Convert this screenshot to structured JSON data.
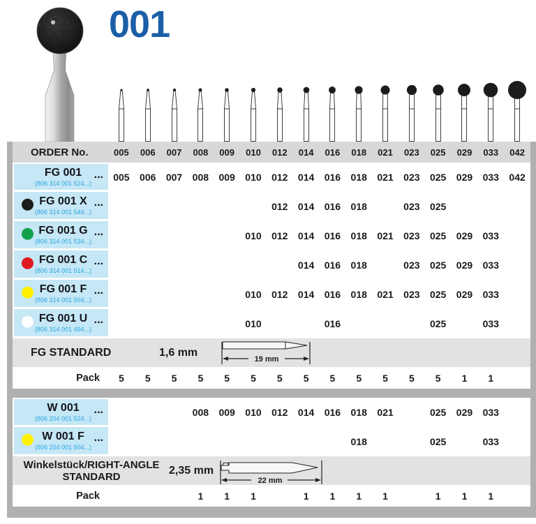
{
  "title": "001",
  "order_header_label": "ORDER No.",
  "columns": [
    "005",
    "006",
    "007",
    "008",
    "009",
    "010",
    "012",
    "014",
    "016",
    "018",
    "021",
    "023",
    "025",
    "029",
    "033",
    "042"
  ],
  "illustration_sizes": [
    5,
    6,
    7,
    8,
    9,
    10,
    12,
    14,
    16,
    18,
    21,
    23,
    25,
    29,
    33,
    42
  ],
  "colors": {
    "accent_blue": "#1b5ea8",
    "code_text_blue": "#29a8e0",
    "label_bg_blue": "#c5e7f6",
    "dot_black": "#1d1d1b",
    "dot_green": "#12a14b",
    "dot_red": "#e01a22",
    "dot_yellow": "#fff200",
    "dot_white": "#ffffff"
  },
  "fg_section": {
    "rows": [
      {
        "name": "FG 001",
        "ellipsis": "...",
        "code": "(806 314 001 524...)",
        "dot": null,
        "values": [
          "005",
          "006",
          "007",
          "008",
          "009",
          "010",
          "012",
          "014",
          "016",
          "018",
          "021",
          "023",
          "025",
          "029",
          "033",
          "042"
        ]
      },
      {
        "name": "FG 001 X",
        "ellipsis": "...",
        "code": "(806 314 001 544...)",
        "dot": "#1d1d1b",
        "values": [
          "",
          "",
          "",
          "",
          "",
          "",
          "012",
          "014",
          "016",
          "018",
          "",
          "023",
          "025",
          "",
          "",
          ""
        ]
      },
      {
        "name": "FG 001 G",
        "ellipsis": "...",
        "code": "(806 314 001 534...)",
        "dot": "#12a14b",
        "values": [
          "",
          "",
          "",
          "",
          "",
          "010",
          "012",
          "014",
          "016",
          "018",
          "021",
          "023",
          "025",
          "029",
          "033",
          ""
        ]
      },
      {
        "name": "FG 001 C",
        "ellipsis": "...",
        "code": "(806 314 001 514...)",
        "dot": "#e01a22",
        "values": [
          "",
          "",
          "",
          "",
          "",
          "",
          "",
          "014",
          "016",
          "018",
          "",
          "023",
          "025",
          "029",
          "033",
          ""
        ]
      },
      {
        "name": "FG 001 F",
        "ellipsis": "...",
        "code": "(806 314 001 504...)",
        "dot": "#fff200",
        "values": [
          "",
          "",
          "",
          "",
          "",
          "010",
          "012",
          "014",
          "016",
          "018",
          "021",
          "023",
          "025",
          "029",
          "033",
          ""
        ]
      },
      {
        "name": "FG 001 U",
        "ellipsis": "...",
        "code": "(806 314 001 494...)",
        "dot": "#ffffff",
        "values": [
          "",
          "",
          "",
          "",
          "",
          "010",
          "",
          "",
          "016",
          "",
          "",
          "",
          "025",
          "",
          "033",
          ""
        ]
      }
    ],
    "standard_label": "FG STANDARD",
    "shank_diameter": "1,6 mm",
    "shank_length": "19 mm",
    "pack_label": "Pack",
    "pack_values": [
      "5",
      "5",
      "5",
      "5",
      "5",
      "5",
      "5",
      "5",
      "5",
      "5",
      "5",
      "5",
      "5",
      "1",
      "1",
      ""
    ]
  },
  "w_section": {
    "rows": [
      {
        "name": "W 001",
        "ellipsis": "...",
        "code": "(806 204 001 524...)",
        "dot": null,
        "values": [
          "",
          "",
          "",
          "008",
          "009",
          "010",
          "012",
          "014",
          "016",
          "018",
          "021",
          "",
          "025",
          "029",
          "033",
          ""
        ]
      },
      {
        "name": "W 001 F",
        "ellipsis": "...",
        "code": "(806 204 001 504...)",
        "dot": "#fff200",
        "values": [
          "",
          "",
          "",
          "",
          "",
          "",
          "",
          "",
          "",
          "018",
          "",
          "",
          "025",
          "",
          "033",
          ""
        ]
      }
    ],
    "standard_label_line1": "Winkelstück/RIGHT-ANGLE",
    "standard_label_line2": "STANDARD",
    "shank_diameter": "2,35 mm",
    "shank_length": "22 mm",
    "pack_label": "Pack",
    "pack_values": [
      "",
      "",
      "",
      "1",
      "1",
      "1",
      "",
      "1",
      "1",
      "1",
      "1",
      "",
      "1",
      "1",
      "1",
      ""
    ]
  }
}
